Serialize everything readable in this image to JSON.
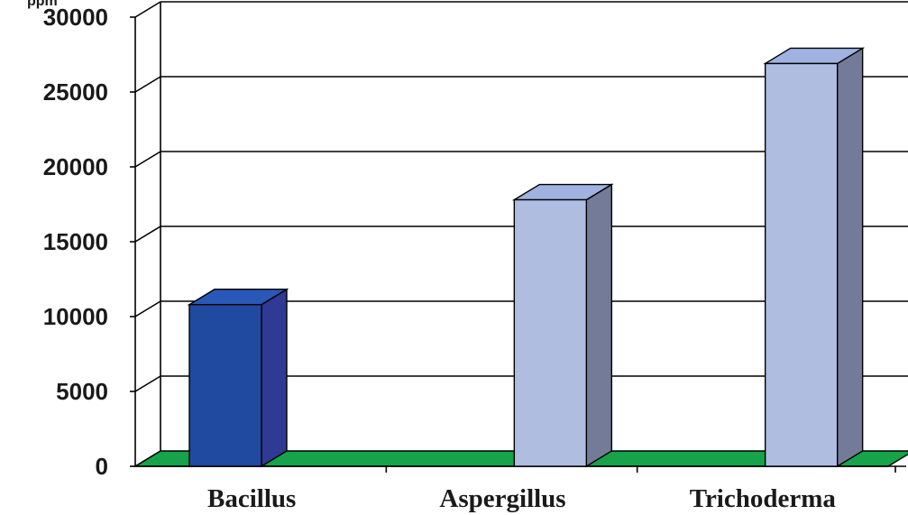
{
  "chart_data": {
    "type": "bar",
    "title": "",
    "xlabel": "",
    "ylabel_fragment": "ppm",
    "categories": [
      "Bacillus",
      "Aspergillus",
      "Trichoderma"
    ],
    "series": [
      {
        "values": [
          10800,
          17800,
          26900
        ]
      }
    ],
    "ylim": [
      0,
      30000
    ],
    "yticks": [
      "0",
      "5000",
      "10000",
      "15000",
      "20000",
      "25000",
      "30000"
    ],
    "grid": true,
    "legend": "none",
    "three_d": true,
    "colors": {
      "bar_highlight_front": "#1f4aa0",
      "bar_highlight_side": "#2e3a93",
      "bar_highlight_top": "#2a58b8",
      "bar_front": "#aebde0",
      "bar_side": "#737b99",
      "bar_top": "#a0b2e0",
      "floor": "#16a349",
      "grid": "#000000",
      "background": "#ffffff"
    }
  }
}
